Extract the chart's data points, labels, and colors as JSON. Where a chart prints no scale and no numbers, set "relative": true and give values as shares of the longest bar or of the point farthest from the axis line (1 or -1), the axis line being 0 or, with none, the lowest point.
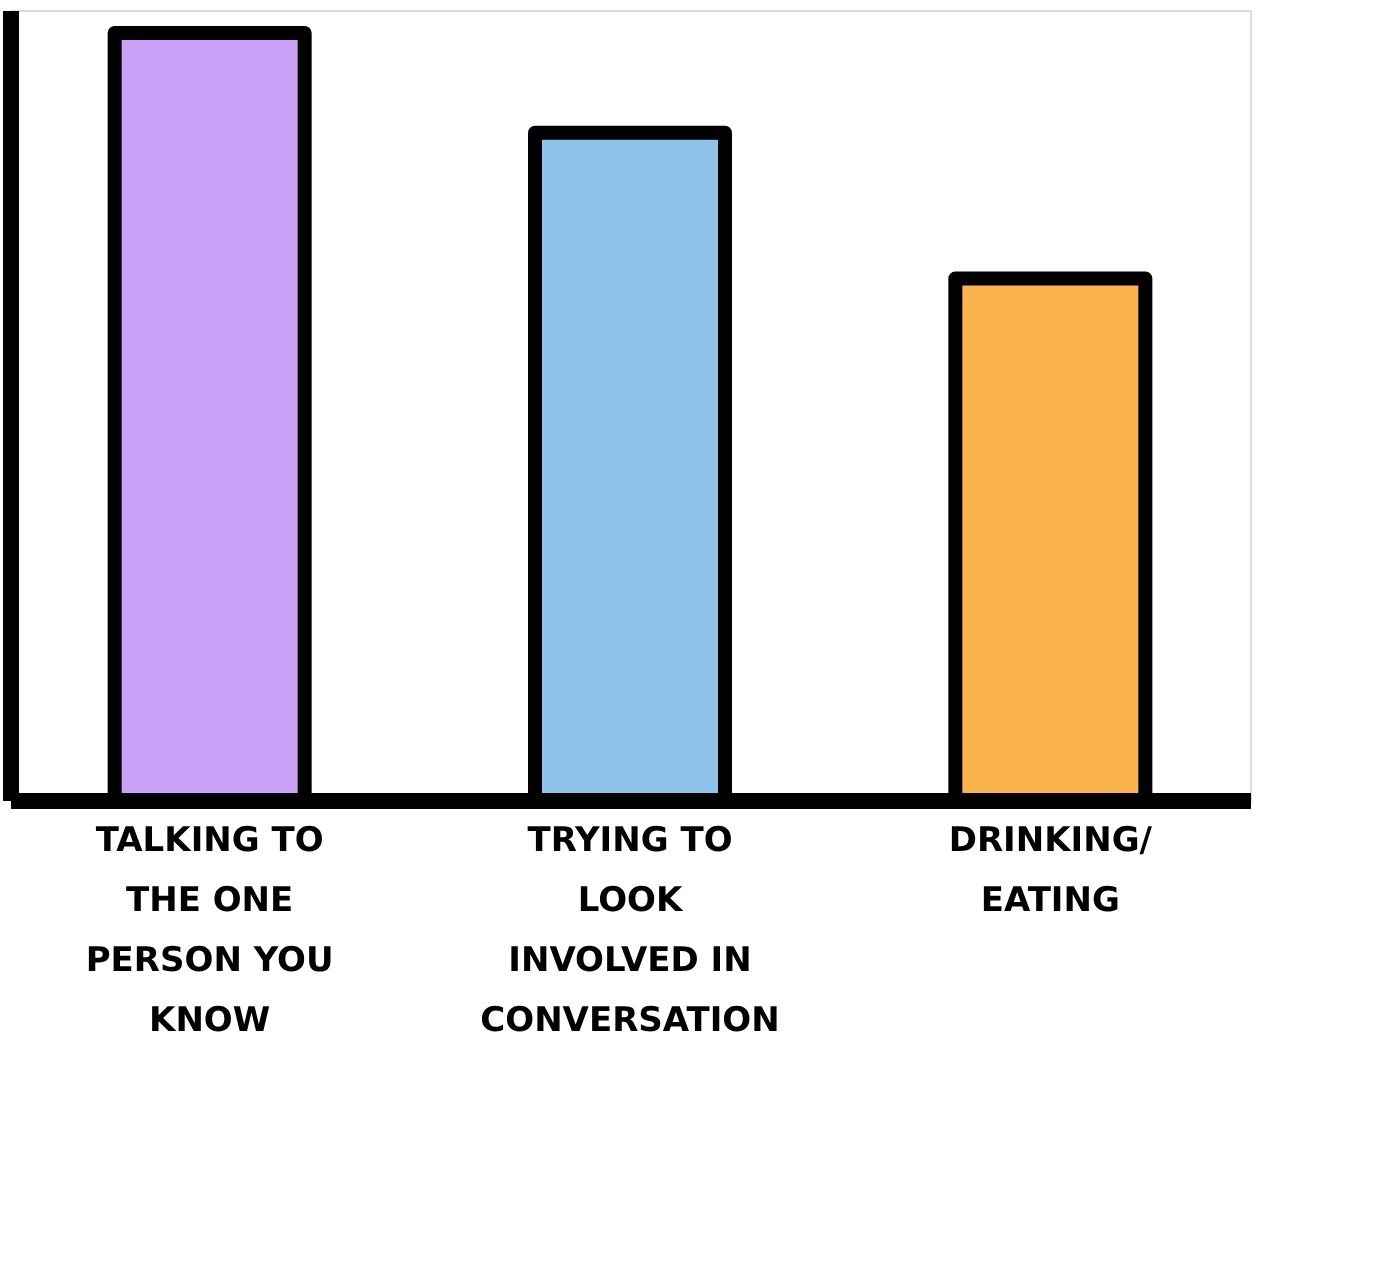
{
  "chart_data": {
    "type": "bar",
    "relative": true,
    "categories": [
      "TALKING TO THE ONE PERSON YOU KNOW",
      "TRYING TO LOOK INVOLVED IN CONVERSATION",
      "DRINKING/ EATING"
    ],
    "values": [
      1,
      0.87,
      0.68
    ],
    "colors": [
      "#c9a2f7",
      "#8fc3ea",
      "#fbb34f"
    ],
    "grid": false,
    "tick_labels": "x"
  }
}
